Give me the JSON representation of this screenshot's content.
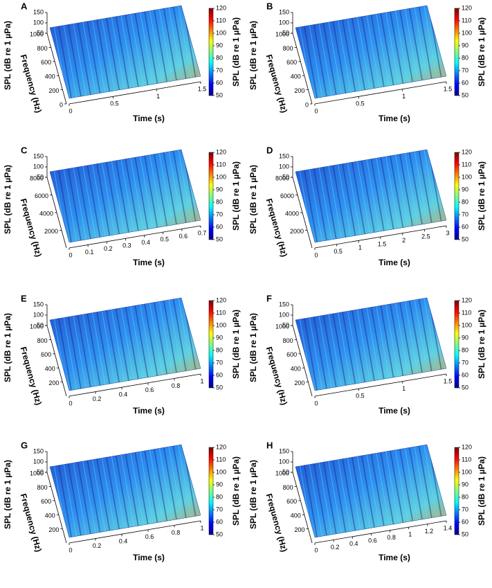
{
  "chart_data": [
    {
      "type": "surface",
      "title": "A",
      "xlabel": "Time (s)",
      "ylabel": "Frequency (Hz)",
      "zlabel": "SPL (dB re 1 µPa)",
      "colorbar_label": "SPL (dB re 1 µPa)",
      "colormap": "jet",
      "xlim": [
        0,
        1.5
      ],
      "xticks": [
        0,
        0.5,
        1,
        1.5
      ],
      "ylim": [
        0,
        1000
      ],
      "yticks": [
        0,
        200,
        400,
        600,
        800,
        1000
      ],
      "zlim": [
        50,
        150
      ],
      "zticks": [
        50,
        100,
        150
      ],
      "clim": [
        50,
        120
      ],
      "cticks": [
        50,
        60,
        70,
        80,
        90,
        100,
        110,
        120
      ]
    },
    {
      "type": "surface",
      "title": "B",
      "xlabel": "Time (s)",
      "ylabel": "Frequency (Hz)",
      "zlabel": "SPL (dB re 1 µPa)",
      "colorbar_label": "SPL (dB re 1 µPa)",
      "colormap": "jet",
      "xlim": [
        0,
        1.5
      ],
      "xticks": [
        0,
        0.5,
        1,
        1.5
      ],
      "ylim": [
        0,
        1000
      ],
      "yticks": [
        0,
        200,
        400,
        600,
        800,
        1000
      ],
      "zlim": [
        50,
        150
      ],
      "zticks": [
        50,
        100,
        150
      ],
      "clim": [
        50,
        120
      ],
      "cticks": [
        50,
        60,
        70,
        80,
        90,
        100,
        110,
        120
      ]
    },
    {
      "type": "surface",
      "title": "C",
      "xlabel": "Time (s)",
      "ylabel": "Frequency (Hz)",
      "zlabel": "SPL (dB re 1 µPa)",
      "colorbar_label": "SPL (dB re 1 µPa)",
      "colormap": "jet",
      "xlim": [
        0,
        0.7
      ],
      "xticks": [
        0,
        0.1,
        0.2,
        0.3,
        0.4,
        0.5,
        0.6,
        0.7
      ],
      "ylim": [
        0,
        8000
      ],
      "yticks": [
        2000,
        4000,
        6000,
        8000
      ],
      "zlim": [
        50,
        150
      ],
      "zticks": [
        50,
        100,
        150
      ],
      "clim": [
        50,
        120
      ],
      "cticks": [
        50,
        60,
        70,
        80,
        90,
        100,
        110,
        120
      ]
    },
    {
      "type": "surface",
      "title": "D",
      "xlabel": "Time (s)",
      "ylabel": "Frequency (Hz)",
      "zlabel": "SPL (dB re 1 µPa)",
      "colorbar_label": "SPL (dB re 1 µPa)",
      "colormap": "jet",
      "xlim": [
        0,
        3
      ],
      "xticks": [
        0,
        0.5,
        1,
        1.5,
        2,
        2.5,
        3
      ],
      "ylim": [
        0,
        8000
      ],
      "yticks": [
        2000,
        4000,
        6000,
        8000
      ],
      "zlim": [
        50,
        150
      ],
      "zticks": [
        50,
        100,
        150
      ],
      "clim": [
        50,
        120
      ],
      "cticks": [
        50,
        60,
        70,
        80,
        90,
        100,
        110,
        120
      ]
    },
    {
      "type": "surface",
      "title": "E",
      "xlabel": "Time (s)",
      "ylabel": "Frequency (Hz)",
      "zlabel": "SPL (dB re 1 µPa)",
      "colorbar_label": "SPL (dB re 1 µPa)",
      "colormap": "jet",
      "xlim": [
        0,
        1
      ],
      "xticks": [
        0,
        0.2,
        0.4,
        0.6,
        0.8,
        1
      ],
      "ylim": [
        0,
        1000
      ],
      "yticks": [
        200,
        400,
        600,
        800,
        1000
      ],
      "zlim": [
        50,
        150
      ],
      "zticks": [
        50,
        100,
        150
      ],
      "clim": [
        50,
        120
      ],
      "cticks": [
        50,
        60,
        70,
        80,
        90,
        100,
        110,
        120
      ]
    },
    {
      "type": "surface",
      "title": "F",
      "xlabel": "Time (s)",
      "ylabel": "Frequency (Hz)",
      "zlabel": "SPL (dB re 1 µPa)",
      "colorbar_label": "SPL (dB re 1 µPa)",
      "colormap": "jet",
      "xlim": [
        0,
        1.5
      ],
      "xticks": [
        0,
        0.5,
        1,
        1.5
      ],
      "ylim": [
        0,
        1000
      ],
      "yticks": [
        200,
        400,
        600,
        800,
        1000
      ],
      "zlim": [
        50,
        150
      ],
      "zticks": [
        50,
        100,
        150
      ],
      "clim": [
        50,
        120
      ],
      "cticks": [
        50,
        60,
        70,
        80,
        90,
        100,
        110,
        120
      ]
    },
    {
      "type": "surface",
      "title": "G",
      "xlabel": "Time (s)",
      "ylabel": "Frequency (Hz)",
      "zlabel": "SPL (dB re 1 µPa)",
      "colorbar_label": "SPL (dB re 1 µPa)",
      "colormap": "jet",
      "xlim": [
        0,
        1
      ],
      "xticks": [
        0,
        0.2,
        0.4,
        0.6,
        0.8,
        1
      ],
      "ylim": [
        0,
        1000
      ],
      "yticks": [
        200,
        400,
        600,
        800,
        1000
      ],
      "zlim": [
        50,
        150
      ],
      "zticks": [
        50,
        100,
        150
      ],
      "clim": [
        50,
        120
      ],
      "cticks": [
        50,
        60,
        70,
        80,
        90,
        100,
        110,
        120
      ]
    },
    {
      "type": "surface",
      "title": "H",
      "xlabel": "Time (s)",
      "ylabel": "Frequency (Hz)",
      "zlabel": "SPL (dB re 1 µPa)",
      "colorbar_label": "SPL (dB re 1 µPa)",
      "colormap": "jet",
      "xlim": [
        0,
        1.4
      ],
      "xticks": [
        0,
        0.2,
        0.4,
        0.6,
        0.8,
        1,
        1.2,
        1.4
      ],
      "ylim": [
        0,
        1000
      ],
      "yticks": [
        200,
        400,
        600,
        800,
        1000
      ],
      "zlim": [
        50,
        150
      ],
      "zticks": [
        50,
        100,
        150
      ],
      "clim": [
        50,
        120
      ],
      "cticks": [
        50,
        60,
        70,
        80,
        90,
        100,
        110,
        120
      ]
    }
  ]
}
